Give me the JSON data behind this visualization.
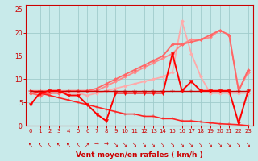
{
  "background_color": "#c8eaea",
  "grid_color": "#a0cccc",
  "xlim": [
    -0.5,
    23.5
  ],
  "ylim": [
    0,
    26
  ],
  "xlabel": "Vent moyen/en rafales ( km/h )",
  "xlabel_color": "#cc0000",
  "xticks": [
    0,
    1,
    2,
    3,
    4,
    5,
    6,
    7,
    8,
    9,
    10,
    11,
    12,
    13,
    14,
    15,
    16,
    17,
    18,
    19,
    20,
    21,
    22,
    23
  ],
  "yticks": [
    0,
    5,
    10,
    15,
    20,
    25
  ],
  "tick_color": "#cc0000",
  "lines": [
    {
      "x": [
        0,
        1,
        2,
        3,
        4,
        5,
        6,
        7,
        8,
        9,
        10,
        11,
        12,
        13,
        14,
        15,
        16,
        17,
        18,
        19,
        20,
        21,
        22,
        23
      ],
      "y": [
        7.5,
        7.5,
        7.5,
        7.5,
        7.5,
        7.5,
        7.5,
        7.5,
        7.5,
        7.5,
        7.5,
        7.5,
        7.5,
        7.5,
        7.5,
        7.5,
        7.5,
        7.5,
        7.5,
        7.5,
        7.5,
        7.5,
        7.5,
        7.5
      ],
      "color": "#cc0000",
      "lw": 1.0,
      "marker": "+",
      "ms": 4,
      "zorder": 5
    },
    {
      "x": [
        0,
        1,
        2,
        3,
        4,
        5,
        6,
        7,
        8,
        9,
        10,
        11,
        12,
        13,
        14,
        15,
        16,
        17,
        18,
        19,
        20,
        21,
        22,
        23
      ],
      "y": [
        7.5,
        7.0,
        6.5,
        6.0,
        5.5,
        5.0,
        4.5,
        4.0,
        3.5,
        3.0,
        2.5,
        2.5,
        2.0,
        2.0,
        1.5,
        1.5,
        1.0,
        1.0,
        0.8,
        0.6,
        0.4,
        0.3,
        0.2,
        0.0
      ],
      "color": "#ff2222",
      "lw": 1.2,
      "marker": "+",
      "ms": 3,
      "zorder": 4
    },
    {
      "x": [
        0,
        1,
        2,
        3,
        4,
        5,
        6,
        7,
        8,
        9,
        10,
        11,
        12,
        13,
        14,
        15,
        16,
        17,
        18,
        19,
        20,
        21,
        22,
        23
      ],
      "y": [
        4.5,
        7.0,
        7.5,
        7.5,
        6.5,
        6.5,
        4.5,
        2.5,
        1.0,
        7.0,
        7.0,
        7.0,
        7.0,
        7.0,
        7.0,
        15.5,
        7.5,
        9.5,
        7.5,
        7.5,
        7.5,
        7.5,
        0.5,
        7.5
      ],
      "color": "#ff0000",
      "lw": 1.4,
      "marker": "v",
      "ms": 3,
      "zorder": 6
    },
    {
      "x": [
        0,
        1,
        2,
        3,
        4,
        5,
        6,
        7,
        8,
        9,
        10,
        11,
        12,
        13,
        14,
        15,
        16,
        17,
        18,
        19,
        20,
        21,
        22,
        23
      ],
      "y": [
        7.0,
        6.5,
        7.0,
        7.0,
        7.0,
        7.0,
        6.5,
        7.0,
        7.5,
        8.0,
        8.5,
        9.0,
        9.5,
        10.0,
        10.5,
        11.5,
        22.5,
        15.5,
        10.5,
        7.0,
        7.0,
        7.0,
        7.0,
        7.0
      ],
      "color": "#ffaaaa",
      "lw": 1.3,
      "marker": "D",
      "ms": 2,
      "zorder": 3
    },
    {
      "x": [
        0,
        1,
        2,
        3,
        4,
        5,
        6,
        7,
        8,
        9,
        10,
        11,
        12,
        13,
        14,
        15,
        16,
        17,
        18,
        19,
        20,
        21,
        22,
        23
      ],
      "y": [
        7.5,
        7.5,
        7.5,
        7.5,
        7.5,
        7.5,
        7.5,
        7.5,
        8.5,
        9.5,
        10.5,
        11.5,
        12.5,
        13.5,
        14.5,
        15.5,
        17.5,
        18.5,
        18.5,
        19.0,
        20.5,
        19.5,
        7.5,
        11.5
      ],
      "color": "#ff8888",
      "lw": 1.3,
      "marker": "D",
      "ms": 2,
      "zorder": 3
    },
    {
      "x": [
        0,
        1,
        2,
        3,
        4,
        5,
        6,
        7,
        8,
        9,
        10,
        11,
        12,
        13,
        14,
        15,
        16,
        17,
        18,
        19,
        20,
        21,
        22,
        23
      ],
      "y": [
        7.0,
        6.5,
        7.0,
        7.0,
        7.5,
        7.5,
        7.5,
        8.0,
        9.0,
        10.0,
        11.0,
        12.0,
        13.0,
        14.0,
        15.0,
        17.5,
        17.5,
        18.0,
        18.5,
        19.5,
        20.5,
        19.5,
        7.5,
        12.0
      ],
      "color": "#ff6666",
      "lw": 1.3,
      "marker": "D",
      "ms": 2,
      "zorder": 3
    }
  ],
  "arrow_symbols": [
    "↖",
    "↖",
    "↖",
    "↖",
    "↖",
    "↖",
    "↗",
    "→",
    "→",
    "↘",
    "↘",
    "↘",
    "↘",
    "↘",
    "↘",
    "↘",
    "↘",
    "↘",
    "↘",
    "↘",
    "↘",
    "↘",
    "↘",
    "↘"
  ]
}
